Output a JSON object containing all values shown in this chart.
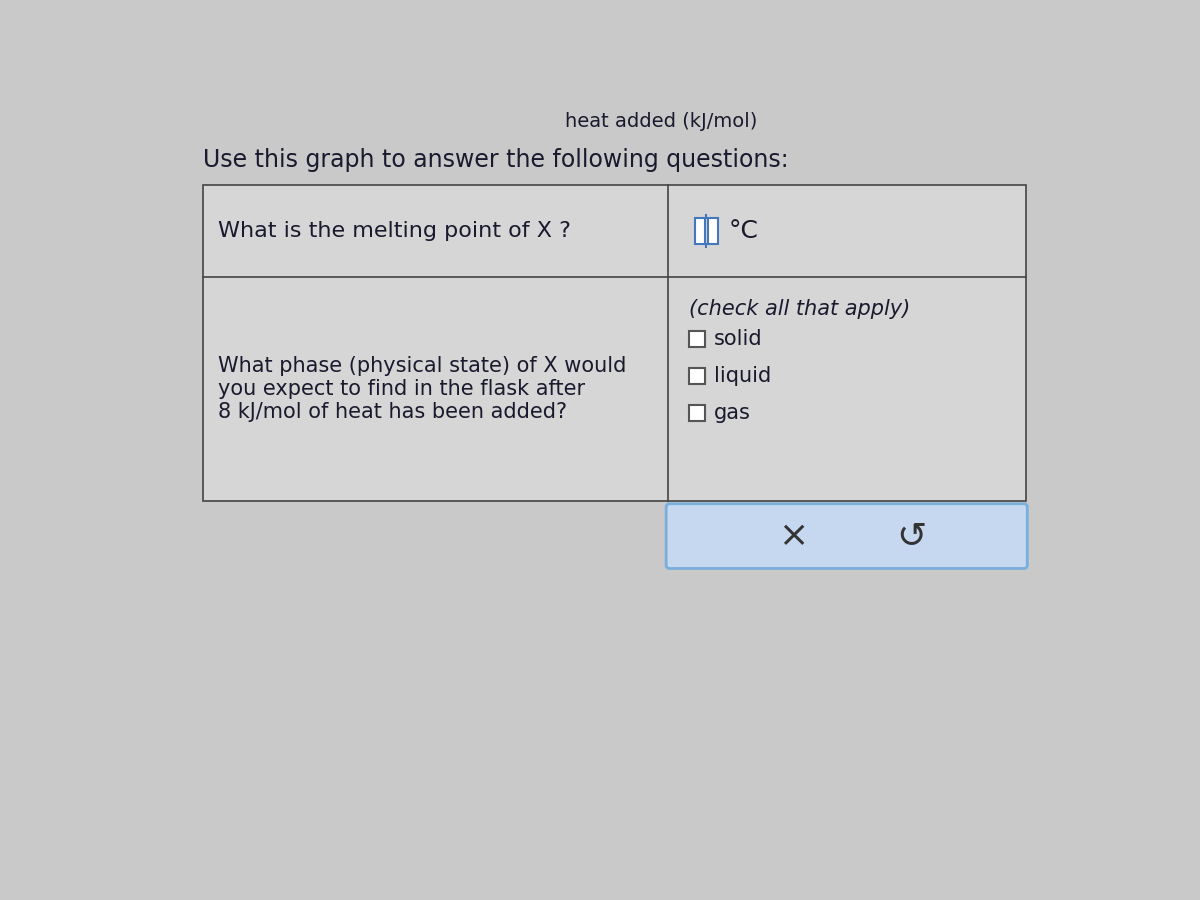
{
  "background_color": "#c9c9c9",
  "header_text": "Use this graph to answer the following questions:",
  "header_font_size": 17,
  "header_color": "#1a1a2e",
  "top_partial_text": "heat added (kJ/mol)",
  "table_cell_bg": "#d6d6d6",
  "table_border_color": "#444444",
  "q1_text": "What is the melting point of X ?",
  "q1_answer_unit": "°C",
  "q2_text_line1": "What phase (physical state) of X would",
  "q2_text_line2": "you expect to find in the flask after",
  "q2_text_line3": "8 kJ/mol of heat has been added?",
  "check_label": "(check all that apply)",
  "options": [
    "solid",
    "liquid",
    "gas"
  ],
  "button_bg": "#c5d8f0",
  "button_border": "#7aafdd",
  "button_x_text": "×",
  "button_undo_text": "↺",
  "text_color": "#1a1a2e",
  "cell_font_size": 15,
  "option_font_size": 15,
  "input_box_color": "#4477bb"
}
